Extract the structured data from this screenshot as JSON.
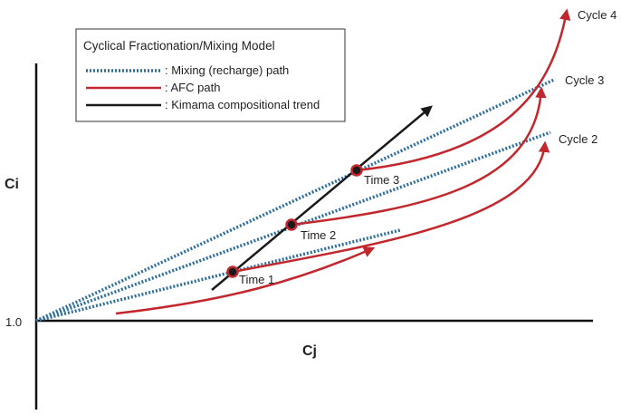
{
  "legend": {
    "title": "Cyclical Fractionation/Mixing Model",
    "items": [
      {
        "key": "mixing",
        "label": ": Mixing (recharge) path"
      },
      {
        "key": "afc",
        "label": ": AFC path"
      },
      {
        "key": "trend",
        "label": ": Kimama compositional trend"
      }
    ]
  },
  "axes": {
    "y_label": "Ci",
    "x_label": "Cj",
    "origin_label": "1.0"
  },
  "points": [
    {
      "label": "Time 1"
    },
    {
      "label": "Time 2"
    },
    {
      "label": "Time 3"
    }
  ],
  "cycles": [
    {
      "label": "Cycle 2"
    },
    {
      "label": "Cycle 3"
    },
    {
      "label": "Cycle 4"
    }
  ],
  "colors": {
    "mixing": "#2e6e9e",
    "afc": "#c1272d",
    "trend": "#1a1a1a",
    "axis": "#111111"
  }
}
